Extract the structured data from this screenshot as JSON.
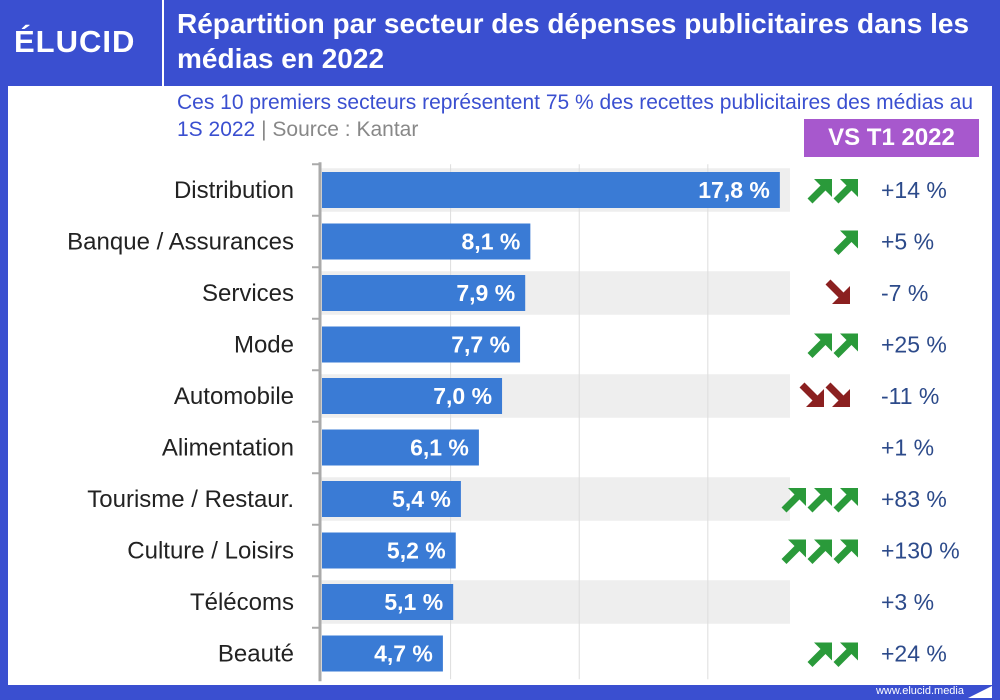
{
  "header": {
    "logo": "ÉLUCID",
    "title": "Répartition par secteur des dépenses publicitaires dans les médias en 2022"
  },
  "subtitle": {
    "text": "Ces 10 premiers secteurs représentent 75 % des recettes publicitaires des médias au 1S 2022",
    "separator": "|",
    "source": "Source : Kantar"
  },
  "comparison": {
    "badge": "VS T1 2022"
  },
  "footer": {
    "url": "www.elucid.media"
  },
  "colors": {
    "bar": "#3a7bd5",
    "up_arrow": "#2a9a3a",
    "down_arrow": "#8b2020",
    "change_text": "#2c4a8a",
    "badge": "#a758cd",
    "background_band": "#eeeeee"
  },
  "chart_data": {
    "type": "bar",
    "orientation": "horizontal",
    "categories": [
      "Distribution",
      "Banque / Assurances",
      "Services",
      "Mode",
      "Automobile",
      "Alimentation",
      "Tourisme / Restaur.",
      "Culture / Loisirs",
      "Télécoms",
      "Beauté"
    ],
    "values": [
      17.8,
      8.1,
      7.9,
      7.7,
      7.0,
      6.1,
      5.4,
      5.2,
      5.1,
      4.7
    ],
    "value_labels": [
      "17,8 %",
      "8,1 %",
      "7,9 %",
      "7,7 %",
      "7,0 %",
      "6,1 %",
      "5,4 %",
      "5,2 %",
      "5,1 %",
      "4,7 %"
    ],
    "changes": [
      "+14 %",
      "+5 %",
      "-7 %",
      "+25 %",
      "-11 %",
      "+1 %",
      "+83 %",
      "+130 %",
      "+3 %",
      "+24 %"
    ],
    "arrows": [
      {
        "direction": "up",
        "count": 2
      },
      {
        "direction": "up",
        "count": 1
      },
      {
        "direction": "down",
        "count": 1
      },
      {
        "direction": "up",
        "count": 2
      },
      {
        "direction": "down",
        "count": 2
      },
      {
        "direction": "none",
        "count": 0
      },
      {
        "direction": "up",
        "count": 3
      },
      {
        "direction": "up",
        "count": 3
      },
      {
        "direction": "none",
        "count": 0
      },
      {
        "direction": "up",
        "count": 2
      }
    ],
    "xlim": [
      0,
      18
    ],
    "grid": true,
    "xlabel": "",
    "ylabel": ""
  }
}
